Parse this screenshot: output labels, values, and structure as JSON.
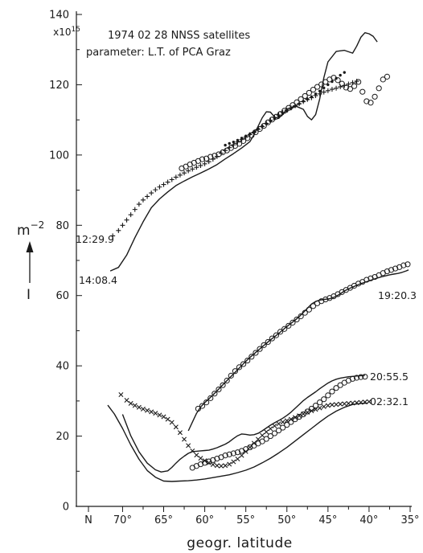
{
  "chart_data": {
    "type": "line",
    "title": "1974 02 28   NNSS satellites",
    "subtitle": "parameter: L.T. of PCA Graz",
    "xlabel": "geogr. latitude",
    "ylabel": "m",
    "ylabel_exponent": "−2",
    "y_symbol": "I",
    "y_multiplier": "x10",
    "y_multiplier_exponent": "15",
    "x_start_label": "N",
    "xlim": [
      72,
      35
    ],
    "ylim": [
      0,
      140
    ],
    "x_ticks": [
      70,
      65,
      60,
      55,
      50,
      45,
      40,
      35
    ],
    "x_tick_labels": [
      "70°",
      "65°",
      "60°",
      "55°",
      "50°",
      "45°",
      "40°",
      "35°"
    ],
    "y_ticks": [
      0,
      20,
      40,
      60,
      80,
      100,
      120,
      140
    ],
    "y_tick_labels": [
      "0",
      "20",
      "40",
      "60",
      "80",
      "100",
      "120",
      "140"
    ],
    "grid": false,
    "series": [
      {
        "name": "12:29.9",
        "style": "plus",
        "x": [
          71.2,
          70.5,
          70,
          69.5,
          69,
          68.5,
          68,
          67.5,
          67,
          66.5,
          66,
          65.5,
          65,
          64.5,
          64,
          63.5,
          63,
          62.5,
          62,
          61.5,
          61,
          60.5,
          60,
          59.5,
          59,
          58.5,
          58,
          57.5,
          57,
          56.5,
          56,
          55.5,
          55,
          54.5,
          54,
          53.5,
          53,
          52.5,
          52,
          51.5,
          51,
          50.5,
          50,
          49.5,
          49,
          48.5,
          48,
          47.5,
          47,
          46.5,
          46,
          45.5,
          45,
          44.5,
          44,
          43.5,
          43,
          42.5,
          42,
          41.5
        ],
        "y": [
          77,
          78.5,
          80,
          81.5,
          83,
          84.5,
          86,
          87.2,
          88.2,
          89.2,
          90.1,
          90.9,
          91.6,
          92.3,
          93,
          93.7,
          94.3,
          94.9,
          95.5,
          96,
          96.5,
          97,
          97.5,
          98.1,
          98.8,
          99.6,
          100.5,
          101.3,
          102.1,
          102.9,
          103.7,
          104.4,
          105.1,
          105.8,
          106.5,
          107.3,
          108.1,
          109,
          109.9,
          110.7,
          111.4,
          112.1,
          112.8,
          113.4,
          114,
          114.6,
          115.2,
          115.8,
          116.3,
          116.9,
          117.4,
          117.9,
          118.3,
          118.7,
          119,
          119.4,
          119.8,
          120.2,
          120.6,
          121
        ]
      },
      {
        "name": "14:08.4",
        "style": "line",
        "x": [
          71.5,
          70.5,
          69.5,
          68.5,
          67.5,
          66.5,
          65.5,
          64.5,
          63.5,
          62.5,
          61.5,
          60.5,
          59.5,
          58.5,
          57.5,
          56.5,
          55.5,
          54.5,
          54,
          53.5,
          53,
          52.5,
          52,
          51.5,
          51,
          50.5,
          50,
          49,
          48,
          47.5,
          47,
          46.5,
          46,
          45.5,
          45,
          44,
          43,
          42,
          41.5,
          41,
          40.5,
          40,
          39.5,
          39
        ],
        "y": [
          67,
          68,
          71.5,
          76.5,
          81,
          85,
          87.5,
          89.5,
          91.3,
          92.6,
          93.8,
          94.9,
          96,
          97.3,
          98.9,
          100.4,
          102,
          103.8,
          105.8,
          108.2,
          110.6,
          112.3,
          112.2,
          110.8,
          110.4,
          111.7,
          113,
          114,
          113,
          111,
          110,
          111.5,
          116,
          122,
          126.5,
          129.5,
          129.8,
          129,
          131,
          133.5,
          134.8,
          134.5,
          133.8,
          132.2
        ]
      },
      {
        "name": "",
        "style": "dot",
        "x": [
          57.5,
          57,
          56.5,
          56,
          55.5,
          55,
          54.5,
          54,
          53.5,
          53,
          52.5,
          52,
          51.5,
          51,
          50.5,
          50,
          49.5,
          49,
          48.5,
          48,
          47.5,
          47,
          46.5,
          46,
          45.5,
          45,
          44.5,
          44,
          43.5,
          43
        ],
        "y": [
          102.8,
          103.3,
          103.7,
          104.2,
          104.8,
          105.4,
          106,
          106.7,
          107.5,
          108.2,
          108.9,
          109.6,
          110.3,
          111,
          111.8,
          112.5,
          113.2,
          113.9,
          114.6,
          115.3,
          115.9,
          116.6,
          117.4,
          118.2,
          119.1,
          120,
          120.9,
          121.8,
          122.7,
          123.5
        ]
      },
      {
        "name": "",
        "style": "circle",
        "x": [
          62.8,
          62.3,
          61.8,
          61.3,
          60.8,
          60.3,
          59.8,
          59.3,
          58.8,
          58.3,
          57.8,
          57.3,
          56.8,
          56.3,
          55.8,
          55.3,
          54.8,
          54.3,
          53.8,
          53.3,
          52.8,
          52.3,
          51.8,
          51.3,
          50.8,
          50.3,
          49.8,
          49.3,
          48.8,
          48.3,
          47.8,
          47.3,
          46.8,
          46.3,
          45.8,
          45.3,
          44.8,
          44.3,
          43.8,
          43.3,
          42.8,
          42.3,
          41.8,
          41.3,
          40.8,
          40.3,
          39.8,
          39.3,
          38.8,
          38.3,
          37.8
        ],
        "y": [
          96.2,
          96.7,
          97.3,
          97.8,
          98.3,
          98.8,
          99,
          99.5,
          99.8,
          100.2,
          100.8,
          101.3,
          102,
          102.6,
          103.2,
          104,
          104.8,
          105.6,
          106.5,
          107.4,
          108.3,
          109.3,
          110.1,
          110.9,
          111.7,
          112.6,
          113.4,
          114.2,
          115,
          115.9,
          116.8,
          117.7,
          118.6,
          119.4,
          120.1,
          120.8,
          121.5,
          122,
          121.3,
          120.3,
          119.2,
          118.8,
          119.6,
          120.8,
          118,
          115.3,
          114.9,
          116.6,
          119,
          121.5,
          122.3
        ]
      },
      {
        "name": "19:20.3",
        "style": "line",
        "x": [
          62,
          61.5,
          61,
          60.5,
          60,
          59.5,
          59,
          58.5,
          58,
          57.5,
          57,
          56.5,
          56,
          55.5,
          55,
          54.5,
          54,
          53.5,
          53,
          52.5,
          52,
          51.5,
          51,
          50.5,
          50,
          49.5,
          49,
          48.5,
          48,
          47.5,
          47,
          46.5,
          46,
          45.5,
          45,
          44.5,
          44,
          43.5,
          43,
          42.5,
          42,
          41.5,
          41,
          40.5,
          40,
          39.5,
          39,
          38.5,
          38,
          37.5,
          37,
          36.5,
          36,
          35.5,
          35.2
        ],
        "y": [
          21.5,
          24,
          26.5,
          28.3,
          29.5,
          30.6,
          31.7,
          32.9,
          34.1,
          35.3,
          36.5,
          37.7,
          38.9,
          40.1,
          41.3,
          42.4,
          43.4,
          44.4,
          45.4,
          46.4,
          47.4,
          48.3,
          49.2,
          50.2,
          51.2,
          52.1,
          53,
          54,
          55.2,
          56.4,
          57.6,
          58.3,
          58.7,
          58.9,
          59,
          59.3,
          59.8,
          60.5,
          61.3,
          61.9,
          62.4,
          62.9,
          63.4,
          63.8,
          64.2,
          64.6,
          65,
          65.3,
          65.6,
          65.9,
          66.1,
          66.3,
          66.6,
          67,
          67.3
        ]
      },
      {
        "name": "",
        "style": "circle",
        "x": [
          60.8,
          60.3,
          59.8,
          59.3,
          58.8,
          58.3,
          57.8,
          57.3,
          56.8,
          56.3,
          55.8,
          55.3,
          54.8,
          54.3,
          53.8,
          53.3,
          52.8,
          52.3,
          51.8,
          51.3,
          50.8,
          50.3,
          49.8,
          49.3,
          48.8,
          48.3,
          47.8,
          47.3,
          46.8,
          46.3,
          45.8,
          45.3,
          44.8,
          44.3,
          43.8,
          43.3,
          42.8,
          42.3,
          41.8,
          41.3,
          40.8,
          40.3,
          39.8,
          39.3,
          38.8,
          38.3,
          37.8,
          37.3,
          36.8,
          36.3,
          35.8,
          35.3
        ],
        "y": [
          27.8,
          28.6,
          29.6,
          30.8,
          32.1,
          33.3,
          34.5,
          35.8,
          37.2,
          38.5,
          39.6,
          40.5,
          41.5,
          42.6,
          43.7,
          44.8,
          45.9,
          46.8,
          47.8,
          48.7,
          49.7,
          50.5,
          51.4,
          52.3,
          53.2,
          54.1,
          55.1,
          56,
          57,
          57.8,
          58.4,
          58.9,
          59.3,
          59.8,
          60.4,
          61,
          61.6,
          62.2,
          62.8,
          63.4,
          63.9,
          64.5,
          64.9,
          65.3,
          65.8,
          66.4,
          66.9,
          67.3,
          67.7,
          68.1,
          68.6,
          68.9
        ]
      },
      {
        "name": "",
        "style": "line",
        "x": [
          70,
          69,
          68,
          67,
          66,
          65.3,
          64.5,
          64,
          63.5,
          63,
          62.5,
          62,
          61.5,
          61,
          60.5,
          60,
          59.5,
          59,
          58.5,
          58,
          57.5,
          57,
          56.5,
          56,
          55.5,
          55,
          54.5,
          54,
          53.5,
          53,
          52.5,
          52,
          51.5,
          51,
          50.5,
          50,
          49.5,
          49,
          48.5,
          48,
          47.5,
          47,
          46.5,
          46,
          45.5,
          45,
          44.5,
          44,
          43.5,
          43,
          42.5,
          42,
          41.5,
          41,
          40.5
        ],
        "y": [
          26.2,
          20.1,
          15.5,
          12.3,
          10.4,
          9.8,
          10.1,
          11.1,
          12.3,
          13.4,
          14.3,
          15.1,
          15.6,
          15.7,
          15.8,
          15.9,
          16,
          16.3,
          16.7,
          17.2,
          17.7,
          18.4,
          19.3,
          20.1,
          20.6,
          20.5,
          20.3,
          20.4,
          20.8,
          21.5,
          22.3,
          23.1,
          23.8,
          24.4,
          25.1,
          25.9,
          26.8,
          27.9,
          29,
          30.1,
          31,
          31.8,
          32.6,
          33.5,
          34.3,
          35.1,
          35.7,
          36.2,
          36.5,
          36.7,
          36.9,
          37,
          37.1,
          37.2,
          37.3
        ]
      },
      {
        "name": "20:55.5",
        "style": "circle",
        "x": [
          61.5,
          61,
          60.5,
          60,
          59.5,
          59,
          58.5,
          58,
          57.5,
          57,
          56.5,
          56,
          55.5,
          55,
          54.5,
          54,
          53.5,
          53,
          52.5,
          52,
          51.5,
          51,
          50.5,
          50,
          49.5,
          49,
          48.5,
          48,
          47.5,
          47,
          46.5,
          46,
          45.5,
          45,
          44.5,
          44,
          43.5,
          43,
          42.5,
          42,
          41.5,
          41,
          40.5
        ],
        "y": [
          11,
          11.5,
          12,
          12.4,
          12.8,
          13.2,
          13.6,
          14,
          14.5,
          14.8,
          15.1,
          15.4,
          15.8,
          16.3,
          16.8,
          17.3,
          17.9,
          18.5,
          19.2,
          20,
          20.8,
          21.6,
          22.4,
          23.2,
          24,
          24.8,
          25.5,
          26.2,
          27,
          27.8,
          28.7,
          29.6,
          30.5,
          31.6,
          32.7,
          33.7,
          34.5,
          35.2,
          35.8,
          36.3,
          36.6,
          36.8,
          36.9
        ]
      },
      {
        "name": "02:32.1",
        "style": "cross",
        "x": [
          70.2,
          69.5,
          69,
          68.5,
          68,
          67.5,
          67,
          66.5,
          66,
          65.5,
          65,
          64.5,
          64,
          63.5,
          63,
          62.5,
          62,
          61.5,
          61,
          60.5,
          60,
          59.5,
          59,
          58.5,
          58,
          57.5,
          57,
          56.5,
          56,
          55.5,
          55,
          54.5,
          54,
          53.5,
          53,
          52.5,
          52,
          51.5,
          51,
          50.5,
          50,
          49.5,
          49,
          48.5,
          48,
          47.5,
          47,
          46.5,
          46,
          45.5,
          45,
          44.5,
          44,
          43.5,
          43,
          42.5,
          42,
          41.5,
          41,
          40.5,
          40
        ],
        "y": [
          31.8,
          30.2,
          29.3,
          28.7,
          28.2,
          27.7,
          27.3,
          26.9,
          26.5,
          26,
          25.5,
          24.8,
          23.9,
          22.6,
          21,
          19.1,
          17.3,
          15.8,
          14.6,
          13.7,
          13,
          12.4,
          11.9,
          11.6,
          11.5,
          11.6,
          12,
          12.7,
          13.5,
          14.5,
          15.6,
          16.8,
          18,
          19.1,
          20.2,
          21.2,
          22.1,
          22.9,
          23.5,
          24,
          24.4,
          24.8,
          25.3,
          25.8,
          26.3,
          26.8,
          27.2,
          27.6,
          28,
          28.4,
          28.7,
          28.9,
          29,
          29.1,
          29.2,
          29.3,
          29.4,
          29.5,
          29.6,
          29.7,
          29.8
        ]
      },
      {
        "name": "",
        "style": "line",
        "x": [
          71.8,
          71,
          70,
          69,
          68,
          67,
          66,
          65,
          64,
          63,
          62,
          61,
          60,
          59,
          58,
          57,
          56,
          55,
          54,
          53,
          52,
          51,
          50,
          49,
          48,
          47,
          46,
          45,
          44,
          43,
          42,
          41,
          40.2
        ],
        "y": [
          28.8,
          26.3,
          22.2,
          17.5,
          13.4,
          10.2,
          8.3,
          7.2,
          7.1,
          7.2,
          7.3,
          7.5,
          7.8,
          8.2,
          8.6,
          9,
          9.6,
          10.3,
          11.2,
          12.4,
          13.7,
          15.2,
          16.8,
          18.6,
          20.4,
          22.2,
          24,
          25.7,
          27.1,
          28.2,
          29,
          29.3,
          29.4
        ]
      }
    ]
  }
}
